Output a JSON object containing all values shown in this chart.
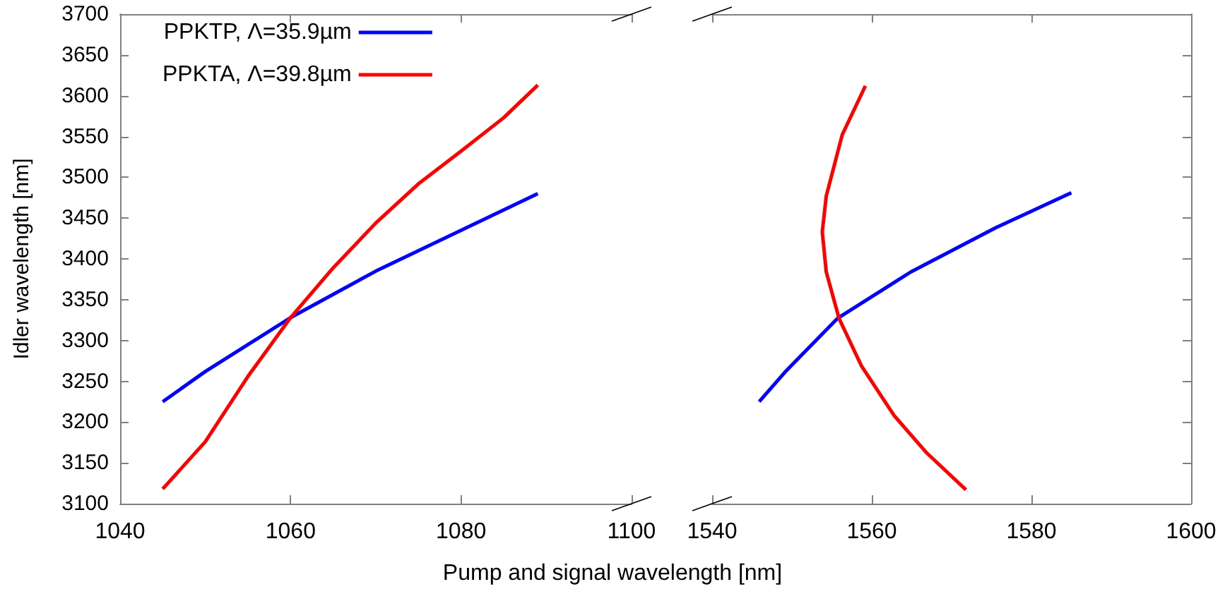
{
  "chart_data": [
    {
      "type": "line",
      "xlabel": "Pump and signal wavelength [nm]",
      "ylabel": "Idler wavelength [nm]",
      "legend": "top left",
      "grid": false,
      "marker": "none",
      "line_style": "solid",
      "xlim": [
        1040,
        1100
      ],
      "xticks": [
        1040,
        1060,
        1080,
        1100
      ],
      "ylim": [
        3100,
        3700
      ],
      "yticks": [
        3100,
        3150,
        3200,
        3250,
        3300,
        3350,
        3400,
        3450,
        3500,
        3550,
        3600,
        3650,
        3700
      ],
      "series": [
        {
          "name": "PPKTP, Λ=35.9µm",
          "color": "#0000ff",
          "x": [
            1045,
            1050,
            1060,
            1070,
            1080,
            1089
          ],
          "values": [
            3225,
            3262,
            3328,
            3385,
            3435,
            3480
          ]
        },
        {
          "name": "PPKTA, Λ=39.8µm",
          "color": "#ff0000",
          "x": [
            1045,
            1050,
            1055,
            1060,
            1065,
            1070,
            1075,
            1080,
            1085,
            1089
          ],
          "values": [
            3118,
            3176,
            3256,
            3328,
            3389,
            3444,
            3492,
            3532,
            3573,
            3613
          ]
        }
      ]
    },
    {
      "type": "line",
      "grid": false,
      "marker": "none",
      "line_style": "solid",
      "tick_labels": "x",
      "xlim": [
        1540,
        1600
      ],
      "xticks": [
        1540,
        1560,
        1580,
        1600
      ],
      "ylim": [
        3100,
        3700
      ],
      "yticks": [
        3100,
        3150,
        3200,
        3250,
        3300,
        3350,
        3400,
        3450,
        3500,
        3550,
        3600,
        3650,
        3700
      ],
      "series": [
        {
          "color": "#0000ff",
          "x": [
            1545.9,
            1549.3,
            1555.7,
            1564.9,
            1575.5,
            1585
          ],
          "values": [
            3225,
            3263,
            3327,
            3384,
            3438,
            3481
          ]
        },
        {
          "color": "#ff0000",
          "x": [
            1559.2,
            1556.3,
            1554.3,
            1553.8,
            1554.3,
            1555.9,
            1558.7,
            1562.8,
            1566.9,
            1571.8
          ],
          "values": [
            3612,
            3552,
            3477,
            3433,
            3384,
            3327,
            3269,
            3208,
            3162,
            3117
          ]
        }
      ]
    }
  ]
}
